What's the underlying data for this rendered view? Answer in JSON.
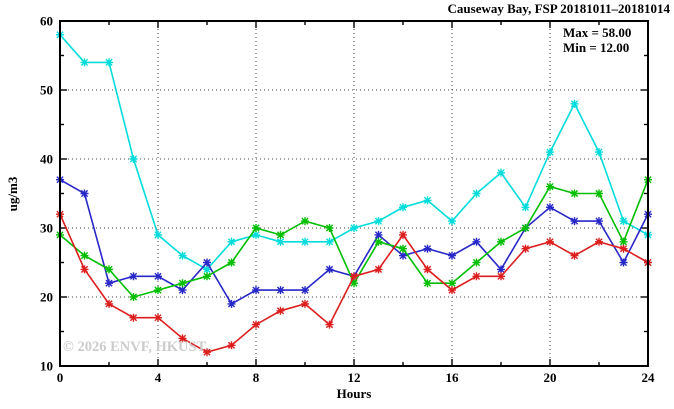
{
  "header": {
    "title": "Causeway Bay, FSP 20181011–20181014"
  },
  "annotation": {
    "max_label": "Max = 58.00",
    "min_label": "Min = 12.00"
  },
  "watermark": "© 2026 ENVF, HKUST",
  "axes": {
    "xlabel": "Hours",
    "ylabel": "ug/m3"
  },
  "chart_data": {
    "type": "line",
    "title": "Causeway Bay, FSP 20181011–20181014",
    "xlabel": "Hours",
    "ylabel": "ug/m3",
    "xlim": [
      0,
      24
    ],
    "ylim": [
      10,
      60
    ],
    "xticks_major": [
      0,
      4,
      8,
      12,
      16,
      20,
      24
    ],
    "xtick_minor_step": 2,
    "yticks_major": [
      10,
      20,
      30,
      40,
      50,
      60
    ],
    "ytick_minor_step": 5,
    "grid_x": [
      4,
      8,
      12,
      16,
      20
    ],
    "grid_y": [
      20,
      30,
      40,
      50
    ],
    "legend_position": "none",
    "stat_max": 58.0,
    "stat_min": 12.0,
    "x": [
      0,
      1,
      2,
      3,
      4,
      5,
      6,
      7,
      8,
      9,
      10,
      11,
      12,
      13,
      14,
      15,
      16,
      17,
      18,
      19,
      20,
      21,
      22,
      23,
      24
    ],
    "series": [
      {
        "name": "cyan-line",
        "color": "#00DCDC",
        "values": [
          58,
          54,
          54,
          40,
          29,
          26,
          24,
          28,
          29,
          28,
          28,
          28,
          30,
          31,
          33,
          34,
          31,
          35,
          38,
          33,
          41,
          48,
          41,
          31,
          29
        ]
      },
      {
        "name": "blue-line",
        "color": "#2828C8",
        "values": [
          37,
          35,
          22,
          23,
          23,
          21,
          25,
          19,
          21,
          21,
          21,
          24,
          23,
          29,
          26,
          27,
          26,
          28,
          24,
          30,
          33,
          31,
          31,
          25,
          32
        ]
      },
      {
        "name": "green-line",
        "color": "#00BE00",
        "values": [
          29,
          26,
          24,
          20,
          21,
          22,
          23,
          25,
          30,
          29,
          31,
          30,
          22,
          28,
          27,
          22,
          22,
          25,
          28,
          30,
          36,
          35,
          35,
          28,
          37
        ]
      },
      {
        "name": "red-line",
        "color": "#DC1E1E",
        "values": [
          32,
          24,
          19,
          17,
          17,
          14,
          12,
          13,
          16,
          18,
          19,
          16,
          23,
          24,
          29,
          24,
          21,
          23,
          23,
          27,
          28,
          26,
          28,
          27,
          25
        ]
      }
    ]
  },
  "colors": {
    "axis": "#000000",
    "grid": "#444444",
    "background": "#ffffff",
    "watermark": "#cccccc"
  }
}
